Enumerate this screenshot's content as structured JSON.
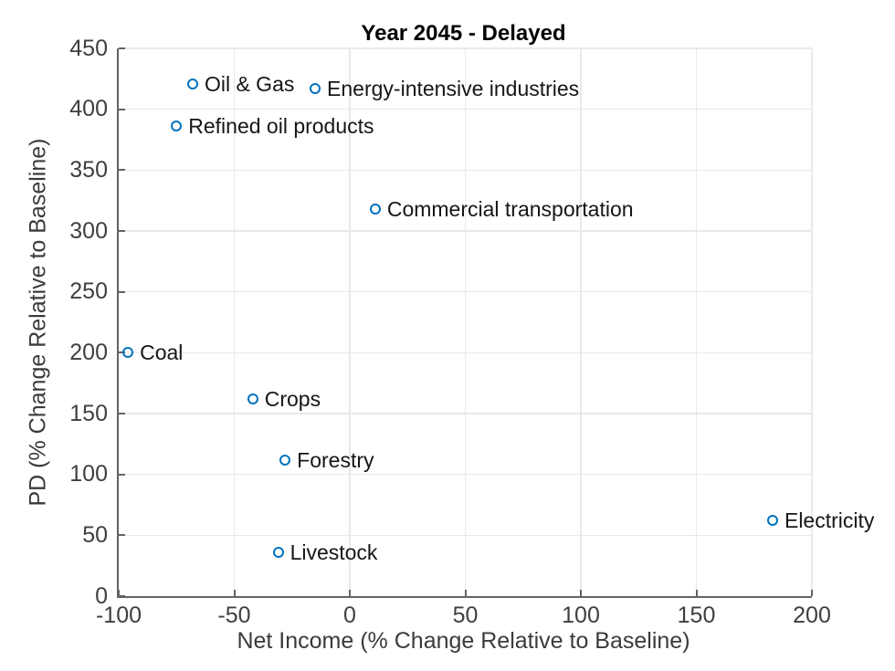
{
  "figure": {
    "background_color": "#ffffff"
  },
  "chart_data": {
    "type": "scatter",
    "title": "Year 2045 - Delayed",
    "xlabel": "Net Income (% Change Relative to Baseline)",
    "ylabel": "PD (% Change Relative to Baseline)",
    "xlim": [
      -100,
      200
    ],
    "ylim": [
      0,
      450
    ],
    "xticks": [
      -100,
      -50,
      0,
      50,
      100,
      150,
      200
    ],
    "yticks": [
      0,
      50,
      100,
      150,
      200,
      250,
      300,
      350,
      400,
      450
    ],
    "grid": true,
    "legend": "none",
    "marker_style": "open-circle",
    "marker_color": "#0072BD",
    "axis_color": "#636363",
    "grid_color": "#e9e9e9",
    "points": [
      {
        "label": "Oil & Gas",
        "x": -68,
        "y": 421
      },
      {
        "label": "Energy-intensive industries",
        "x": -15,
        "y": 417
      },
      {
        "label": "Refined oil products",
        "x": -75,
        "y": 386
      },
      {
        "label": "Commercial transportation",
        "x": 11,
        "y": 318
      },
      {
        "label": "Coal",
        "x": -96,
        "y": 200
      },
      {
        "label": "Crops",
        "x": -42,
        "y": 162
      },
      {
        "label": "Forestry",
        "x": -28,
        "y": 112
      },
      {
        "label": "Livestock",
        "x": -31,
        "y": 36
      },
      {
        "label": "Electricity",
        "x": 183,
        "y": 62
      }
    ]
  }
}
